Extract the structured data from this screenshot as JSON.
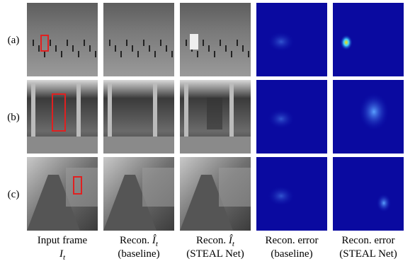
{
  "rows": [
    {
      "label": "(a)"
    },
    {
      "label": "(b)"
    },
    {
      "label": "(c)"
    }
  ],
  "columns": [
    {
      "line1": "Input frame",
      "symbol": "I",
      "subscript": "t"
    },
    {
      "line1": "Recon.",
      "symbol": "Î",
      "subscript": "t",
      "line2": "(baseline)"
    },
    {
      "line1": "Recon.",
      "symbol": "Î",
      "subscript": "t",
      "line2": "(STEAL Net)"
    },
    {
      "line1": "Recon. error",
      "line2": "(baseline)"
    },
    {
      "line1": "Recon. error",
      "line2": "(STEAL Net)"
    }
  ]
}
